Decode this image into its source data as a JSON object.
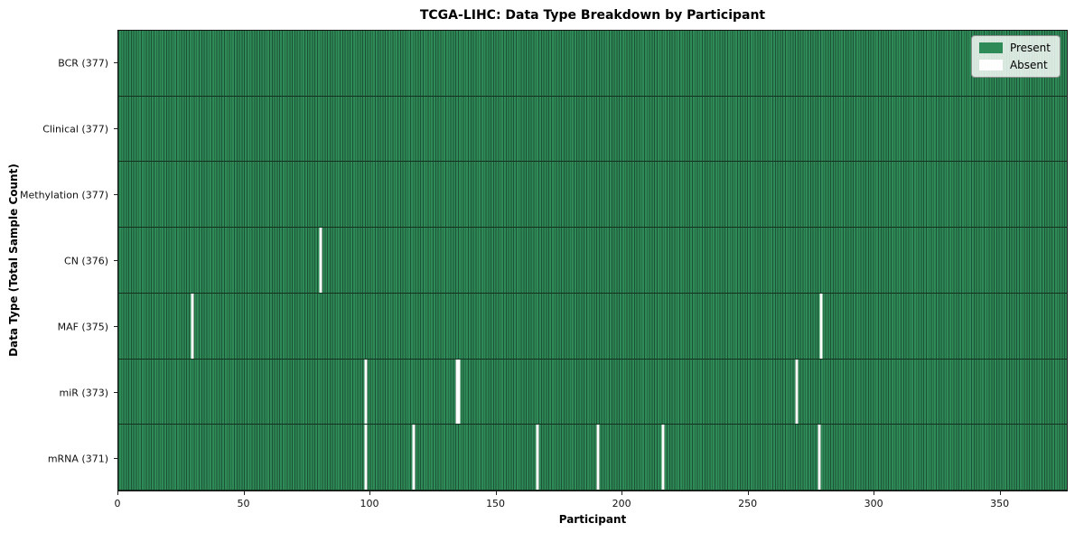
{
  "chart_data": {
    "type": "heatmap",
    "title": "TCGA-LIHC: Data Type Breakdown by Participant",
    "xlabel": "Participant",
    "ylabel": "Data Type (Total Sample Count)",
    "xlim": [
      0,
      377
    ],
    "x_ticks": [
      0,
      50,
      100,
      150,
      200,
      250,
      300,
      350
    ],
    "n_participants": 377,
    "grid": false,
    "legend_position": "upper right",
    "legend_items": [
      {
        "label": "Present",
        "color": "#2e8b57"
      },
      {
        "label": "Absent",
        "color": "#ffffff"
      }
    ],
    "colors": {
      "present": "#2e8b57",
      "absent": "#ffffff",
      "cell_edge": "#1e5236",
      "row_divider": "#14301f",
      "spine": "#151515"
    },
    "rows": [
      {
        "data_type": "BCR",
        "label": "BCR (377)",
        "total_samples": 377,
        "absent_participants": []
      },
      {
        "data_type": "Clinical",
        "label": "Clinical (377)",
        "total_samples": 377,
        "absent_participants": []
      },
      {
        "data_type": "Methylation",
        "label": "Methylation (377)",
        "total_samples": 377,
        "absent_participants": []
      },
      {
        "data_type": "CN",
        "label": "CN (376)",
        "total_samples": 376,
        "absent_participants": [
          80
        ]
      },
      {
        "data_type": "MAF",
        "label": "MAF (375)",
        "total_samples": 375,
        "absent_participants": [
          29,
          279
        ]
      },
      {
        "data_type": "miR",
        "label": "miR (373)",
        "total_samples": 373,
        "absent_participants": [
          98,
          134,
          135,
          269
        ]
      },
      {
        "data_type": "mRNA",
        "label": "mRNA (371)",
        "total_samples": 371,
        "absent_participants": [
          98,
          117,
          166,
          190,
          216,
          278
        ]
      }
    ]
  }
}
